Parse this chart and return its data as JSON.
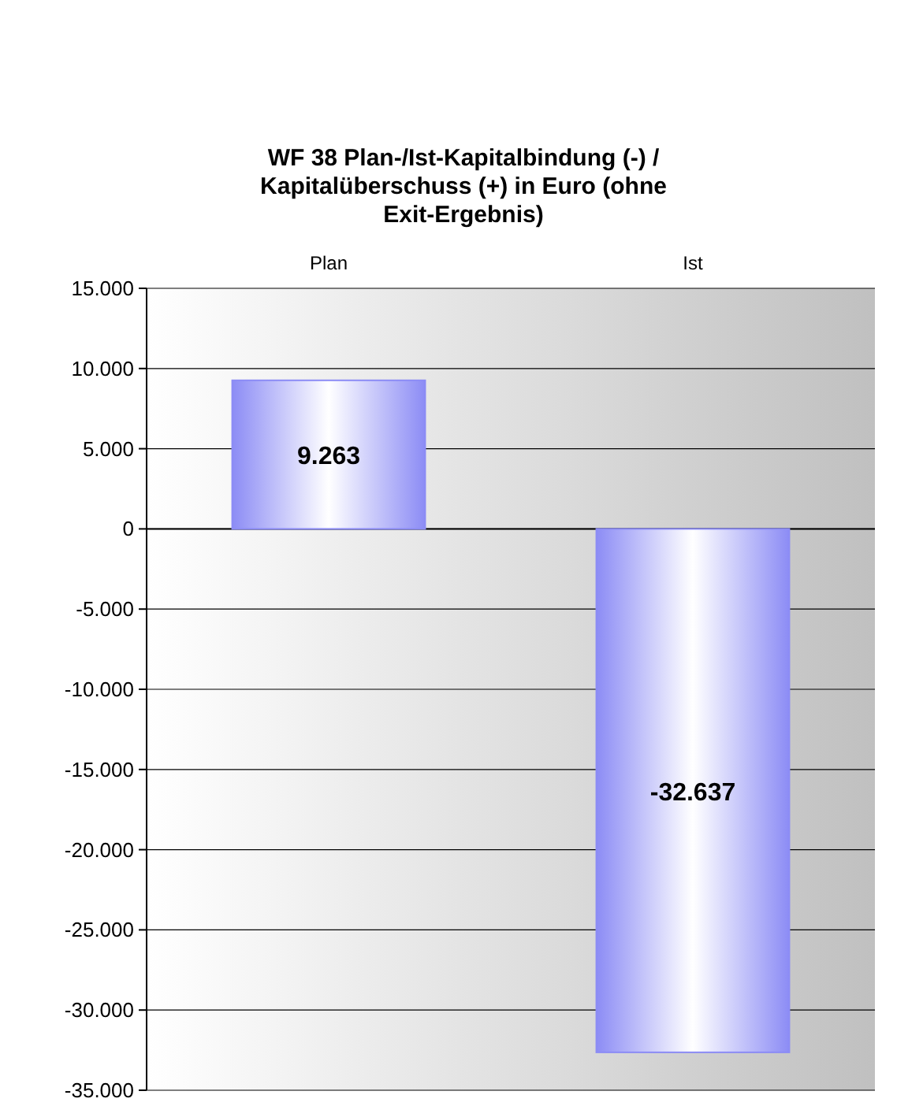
{
  "chart_data": {
    "type": "bar",
    "title": "WF 38 Plan-/Ist-Kapitalbindung (-) / Kapitalüberschuss (+) in Euro (ohne Exit-Ergebnis)",
    "categories": [
      "Plan",
      "Ist"
    ],
    "series": [
      {
        "color": "#8c8cf5",
        "values": [
          9263,
          -32637
        ],
        "value_labels": [
          "9.263",
          "-32.637"
        ]
      }
    ],
    "ylim": [
      -35000,
      15000
    ],
    "yticks": [
      {
        "value": -35000,
        "label": "-35.000"
      },
      {
        "value": -30000,
        "label": "-30.000"
      },
      {
        "value": -25000,
        "label": "-25.000"
      },
      {
        "value": -20000,
        "label": "-20.000"
      },
      {
        "value": -15000,
        "label": "-15.000"
      },
      {
        "value": -10000,
        "label": "-10.000"
      },
      {
        "value": -5000,
        "label": "-5.000"
      },
      {
        "value": 0,
        "label": "0"
      },
      {
        "value": 5000,
        "label": "5.000"
      },
      {
        "value": 10000,
        "label": "10.000"
      },
      {
        "value": 15000,
        "label": "15.000"
      }
    ],
    "grid": "y"
  }
}
